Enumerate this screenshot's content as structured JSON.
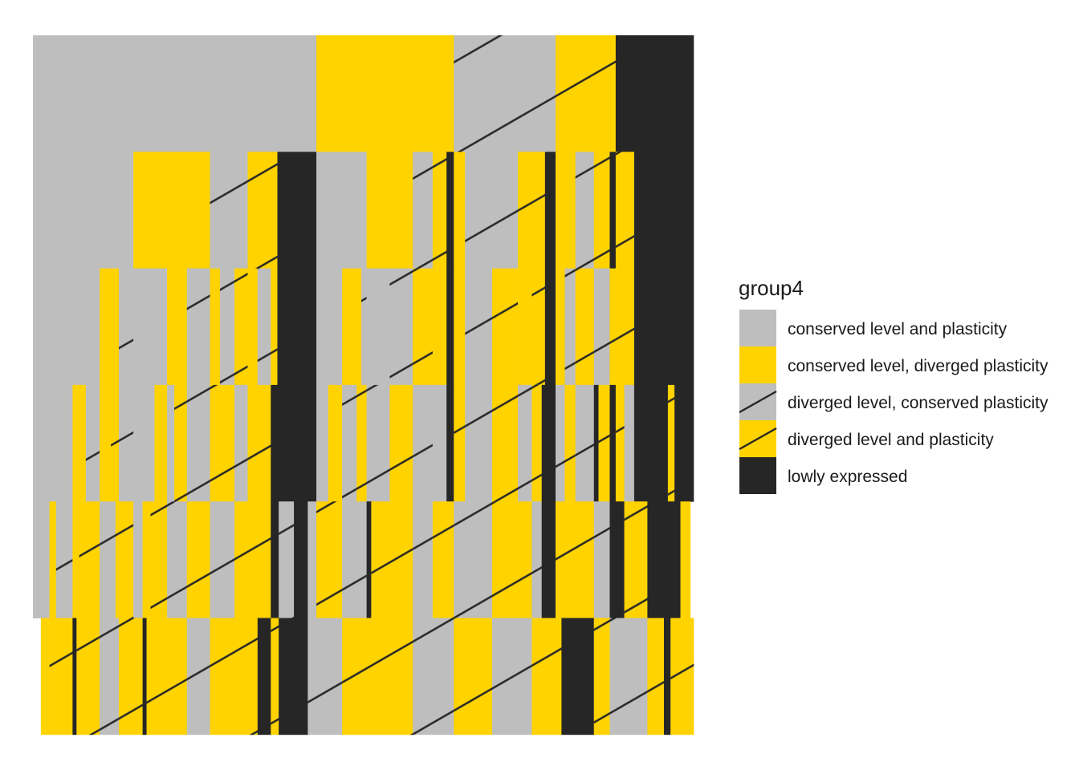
{
  "chart_data": {
    "type": "bar",
    "subtype": "stacked-hierarchical-tile (icicle)",
    "x_axis_shown": false,
    "y_axis_shown": false,
    "grid": false,
    "legend_position": "right",
    "legend": {
      "title": "group4",
      "entries": [
        {
          "key": "cons_both",
          "label": "conserved level and plasticity",
          "fill": "#BEBEBE",
          "hatched": false
        },
        {
          "key": "cons_level",
          "label": "conserved level, diverged plasticity",
          "fill": "#FFD300",
          "hatched": false
        },
        {
          "key": "div_level",
          "label": "diverged level, conserved plasticity",
          "fill": "#BEBEBE",
          "hatched": true
        },
        {
          "key": "div_both",
          "label": "diverged level and plasticity",
          "fill": "#FFD300",
          "hatched": true
        },
        {
          "key": "low",
          "label": "lowly expressed",
          "fill": "#262626",
          "hatched": false
        }
      ]
    },
    "levels": [
      {
        "level": 1,
        "segments": [
          {
            "category": "cons_both",
            "start": 0.0,
            "end": 0.429
          },
          {
            "category": "cons_level",
            "start": 0.429,
            "end": 0.637
          },
          {
            "category": "div_level",
            "start": 0.637,
            "end": 0.791
          },
          {
            "category": "div_both",
            "start": 0.791,
            "end": 0.882
          },
          {
            "category": "low",
            "start": 0.882,
            "end": 1.0
          }
        ]
      },
      {
        "level": 2,
        "segments": [
          {
            "category": "cons_both",
            "start": 0.0,
            "end": 0.152
          },
          {
            "category": "cons_level",
            "start": 0.152,
            "end": 0.268
          },
          {
            "category": "div_level",
            "start": 0.268,
            "end": 0.325
          },
          {
            "category": "div_both",
            "start": 0.325,
            "end": 0.37
          },
          {
            "category": "low",
            "start": 0.37,
            "end": 0.429
          },
          {
            "category": "cons_both",
            "start": 0.429,
            "end": 0.505
          },
          {
            "category": "cons_level",
            "start": 0.505,
            "end": 0.575
          },
          {
            "category": "div_level",
            "start": 0.575,
            "end": 0.605
          },
          {
            "category": "div_both",
            "start": 0.605,
            "end": 0.626
          },
          {
            "category": "low",
            "start": 0.626,
            "end": 0.637
          },
          {
            "category": "cons_level",
            "start": 0.637,
            "end": 0.654
          },
          {
            "category": "div_level",
            "start": 0.654,
            "end": 0.734
          },
          {
            "category": "div_both",
            "start": 0.734,
            "end": 0.775
          },
          {
            "category": "low",
            "start": 0.775,
            "end": 0.791
          },
          {
            "category": "cons_level",
            "start": 0.791,
            "end": 0.821
          },
          {
            "category": "div_level",
            "start": 0.821,
            "end": 0.849
          },
          {
            "category": "div_both",
            "start": 0.849,
            "end": 0.873
          },
          {
            "category": "low",
            "start": 0.873,
            "end": 0.882
          },
          {
            "category": "div_both",
            "start": 0.882,
            "end": 0.91
          },
          {
            "category": "low",
            "start": 0.91,
            "end": 1.0
          }
        ]
      },
      {
        "level": 3,
        "segments": [
          {
            "category": "cons_both",
            "start": 0.0,
            "end": 0.101
          },
          {
            "category": "cons_level",
            "start": 0.101,
            "end": 0.13
          },
          {
            "category": "div_level",
            "start": 0.13,
            "end": 0.152
          },
          {
            "category": "cons_both",
            "start": 0.152,
            "end": 0.203
          },
          {
            "category": "cons_level",
            "start": 0.203,
            "end": 0.233
          },
          {
            "category": "div_level",
            "start": 0.233,
            "end": 0.268
          },
          {
            "category": "cons_level",
            "start": 0.268,
            "end": 0.283
          },
          {
            "category": "div_level",
            "start": 0.283,
            "end": 0.305
          },
          {
            "category": "div_both",
            "start": 0.305,
            "end": 0.325
          },
          {
            "category": "cons_level",
            "start": 0.325,
            "end": 0.34
          },
          {
            "category": "div_level",
            "start": 0.34,
            "end": 0.36
          },
          {
            "category": "div_both",
            "start": 0.36,
            "end": 0.37
          },
          {
            "category": "low",
            "start": 0.37,
            "end": 0.429
          },
          {
            "category": "cons_both",
            "start": 0.429,
            "end": 0.468
          },
          {
            "category": "cons_level",
            "start": 0.468,
            "end": 0.497
          },
          {
            "category": "div_level",
            "start": 0.497,
            "end": 0.505
          },
          {
            "category": "cons_both",
            "start": 0.505,
            "end": 0.54
          },
          {
            "category": "div_level",
            "start": 0.54,
            "end": 0.575
          },
          {
            "category": "div_both",
            "start": 0.575,
            "end": 0.605
          },
          {
            "category": "cons_level",
            "start": 0.605,
            "end": 0.626
          },
          {
            "category": "low",
            "start": 0.626,
            "end": 0.637
          },
          {
            "category": "cons_level",
            "start": 0.637,
            "end": 0.654
          },
          {
            "category": "div_level",
            "start": 0.654,
            "end": 0.695
          },
          {
            "category": "div_both",
            "start": 0.695,
            "end": 0.734
          },
          {
            "category": "cons_level",
            "start": 0.734,
            "end": 0.755
          },
          {
            "category": "div_both",
            "start": 0.755,
            "end": 0.775
          },
          {
            "category": "low",
            "start": 0.775,
            "end": 0.791
          },
          {
            "category": "cons_level",
            "start": 0.791,
            "end": 0.805
          },
          {
            "category": "div_level",
            "start": 0.805,
            "end": 0.821
          },
          {
            "category": "div_both",
            "start": 0.821,
            "end": 0.849
          },
          {
            "category": "div_level",
            "start": 0.849,
            "end": 0.873
          },
          {
            "category": "div_both",
            "start": 0.873,
            "end": 0.882
          },
          {
            "category": "div_both",
            "start": 0.882,
            "end": 0.91
          },
          {
            "category": "low",
            "start": 0.91,
            "end": 1.0
          }
        ]
      },
      {
        "level": 4,
        "segments": [
          {
            "category": "cons_both",
            "start": 0.0,
            "end": 0.06
          },
          {
            "category": "cons_level",
            "start": 0.06,
            "end": 0.08
          },
          {
            "category": "div_level",
            "start": 0.08,
            "end": 0.101
          },
          {
            "category": "cons_level",
            "start": 0.101,
            "end": 0.118
          },
          {
            "category": "div_both",
            "start": 0.118,
            "end": 0.13
          },
          {
            "category": "div_level",
            "start": 0.13,
            "end": 0.152
          },
          {
            "category": "cons_both",
            "start": 0.152,
            "end": 0.184
          },
          {
            "category": "cons_level",
            "start": 0.184,
            "end": 0.203
          },
          {
            "category": "cons_both",
            "start": 0.203,
            "end": 0.214
          },
          {
            "category": "div_both",
            "start": 0.214,
            "end": 0.233
          },
          {
            "category": "div_level",
            "start": 0.233,
            "end": 0.268
          },
          {
            "category": "div_both",
            "start": 0.268,
            "end": 0.305
          },
          {
            "category": "div_level",
            "start": 0.305,
            "end": 0.325
          },
          {
            "category": "div_both",
            "start": 0.325,
            "end": 0.36
          },
          {
            "category": "low",
            "start": 0.36,
            "end": 0.37
          },
          {
            "category": "low",
            "start": 0.37,
            "end": 0.429
          },
          {
            "category": "cons_both",
            "start": 0.429,
            "end": 0.447
          },
          {
            "category": "cons_level",
            "start": 0.447,
            "end": 0.468
          },
          {
            "category": "div_level",
            "start": 0.468,
            "end": 0.49
          },
          {
            "category": "div_both",
            "start": 0.49,
            "end": 0.505
          },
          {
            "category": "div_level",
            "start": 0.505,
            "end": 0.54
          },
          {
            "category": "div_both",
            "start": 0.54,
            "end": 0.575
          },
          {
            "category": "div_level",
            "start": 0.575,
            "end": 0.605
          },
          {
            "category": "cons_both",
            "start": 0.605,
            "end": 0.626
          },
          {
            "category": "low",
            "start": 0.626,
            "end": 0.637
          },
          {
            "category": "div_both",
            "start": 0.637,
            "end": 0.654
          },
          {
            "category": "div_level",
            "start": 0.654,
            "end": 0.695
          },
          {
            "category": "div_both",
            "start": 0.695,
            "end": 0.734
          },
          {
            "category": "div_level",
            "start": 0.734,
            "end": 0.755
          },
          {
            "category": "div_both",
            "start": 0.755,
            "end": 0.77
          },
          {
            "category": "low",
            "start": 0.77,
            "end": 0.791
          },
          {
            "category": "div_level",
            "start": 0.791,
            "end": 0.805
          },
          {
            "category": "div_both",
            "start": 0.805,
            "end": 0.821
          },
          {
            "category": "div_level",
            "start": 0.821,
            "end": 0.849
          },
          {
            "category": "low",
            "start": 0.849,
            "end": 0.856
          },
          {
            "category": "div_both",
            "start": 0.856,
            "end": 0.873
          },
          {
            "category": "low",
            "start": 0.873,
            "end": 0.882
          },
          {
            "category": "div_both",
            "start": 0.882,
            "end": 0.895
          },
          {
            "category": "cons_both",
            "start": 0.895,
            "end": 0.91
          },
          {
            "category": "low",
            "start": 0.91,
            "end": 0.961
          },
          {
            "category": "div_both",
            "start": 0.961,
            "end": 0.971
          },
          {
            "category": "low",
            "start": 0.971,
            "end": 1.0
          }
        ]
      },
      {
        "level": 5,
        "segments": [
          {
            "category": "cons_both",
            "start": 0.0,
            "end": 0.025
          },
          {
            "category": "cons_level",
            "start": 0.025,
            "end": 0.035
          },
          {
            "category": "div_level",
            "start": 0.035,
            "end": 0.06
          },
          {
            "category": "cons_level",
            "start": 0.06,
            "end": 0.07
          },
          {
            "category": "div_both",
            "start": 0.07,
            "end": 0.101
          },
          {
            "category": "div_level",
            "start": 0.101,
            "end": 0.125
          },
          {
            "category": "div_both",
            "start": 0.125,
            "end": 0.152
          },
          {
            "category": "cons_both",
            "start": 0.152,
            "end": 0.166
          },
          {
            "category": "cons_level",
            "start": 0.166,
            "end": 0.178
          },
          {
            "category": "div_both",
            "start": 0.178,
            "end": 0.203
          },
          {
            "category": "div_level",
            "start": 0.203,
            "end": 0.233
          },
          {
            "category": "div_both",
            "start": 0.233,
            "end": 0.268
          },
          {
            "category": "div_level",
            "start": 0.268,
            "end": 0.305
          },
          {
            "category": "div_both",
            "start": 0.305,
            "end": 0.36
          },
          {
            "category": "low",
            "start": 0.36,
            "end": 0.372
          },
          {
            "category": "div_level",
            "start": 0.372,
            "end": 0.395
          },
          {
            "category": "low",
            "start": 0.395,
            "end": 0.416
          },
          {
            "category": "cons_both",
            "start": 0.416,
            "end": 0.429
          },
          {
            "category": "div_both",
            "start": 0.429,
            "end": 0.468
          },
          {
            "category": "div_level",
            "start": 0.468,
            "end": 0.505
          },
          {
            "category": "low",
            "start": 0.505,
            "end": 0.512
          },
          {
            "category": "div_both",
            "start": 0.512,
            "end": 0.575
          },
          {
            "category": "div_level",
            "start": 0.575,
            "end": 0.605
          },
          {
            "category": "div_both",
            "start": 0.605,
            "end": 0.637
          },
          {
            "category": "div_level",
            "start": 0.637,
            "end": 0.695
          },
          {
            "category": "div_both",
            "start": 0.695,
            "end": 0.755
          },
          {
            "category": "div_level",
            "start": 0.755,
            "end": 0.77
          },
          {
            "category": "low",
            "start": 0.77,
            "end": 0.791
          },
          {
            "category": "div_both",
            "start": 0.791,
            "end": 0.849
          },
          {
            "category": "div_level",
            "start": 0.849,
            "end": 0.873
          },
          {
            "category": "low",
            "start": 0.873,
            "end": 0.895
          },
          {
            "category": "div_both",
            "start": 0.895,
            "end": 0.93
          },
          {
            "category": "low",
            "start": 0.93,
            "end": 0.98
          },
          {
            "category": "cons_level",
            "start": 0.98,
            "end": 0.995
          }
        ]
      },
      {
        "level": 6,
        "segments": [
          {
            "category": "cons_level",
            "start": 0.012,
            "end": 0.025
          },
          {
            "category": "div_both",
            "start": 0.025,
            "end": 0.06
          },
          {
            "category": "low",
            "start": 0.06,
            "end": 0.066
          },
          {
            "category": "div_both",
            "start": 0.066,
            "end": 0.101
          },
          {
            "category": "div_level",
            "start": 0.101,
            "end": 0.13
          },
          {
            "category": "div_both",
            "start": 0.13,
            "end": 0.166
          },
          {
            "category": "low",
            "start": 0.166,
            "end": 0.172
          },
          {
            "category": "div_both",
            "start": 0.172,
            "end": 0.233
          },
          {
            "category": "div_level",
            "start": 0.233,
            "end": 0.268
          },
          {
            "category": "div_both",
            "start": 0.268,
            "end": 0.34
          },
          {
            "category": "low",
            "start": 0.34,
            "end": 0.36
          },
          {
            "category": "div_both",
            "start": 0.36,
            "end": 0.372
          },
          {
            "category": "low",
            "start": 0.372,
            "end": 0.416
          },
          {
            "category": "div_level",
            "start": 0.416,
            "end": 0.468
          },
          {
            "category": "div_both",
            "start": 0.468,
            "end": 0.575
          },
          {
            "category": "div_level",
            "start": 0.575,
            "end": 0.637
          },
          {
            "category": "div_both",
            "start": 0.637,
            "end": 0.695
          },
          {
            "category": "div_level",
            "start": 0.695,
            "end": 0.755
          },
          {
            "category": "div_both",
            "start": 0.755,
            "end": 0.8
          },
          {
            "category": "low",
            "start": 0.8,
            "end": 0.849
          },
          {
            "category": "div_both",
            "start": 0.849,
            "end": 0.873
          },
          {
            "category": "div_level",
            "start": 0.873,
            "end": 0.93
          },
          {
            "category": "div_both",
            "start": 0.93,
            "end": 0.955
          },
          {
            "category": "low",
            "start": 0.955,
            "end": 0.965
          },
          {
            "category": "div_both",
            "start": 0.965,
            "end": 1.0
          }
        ]
      }
    ]
  }
}
